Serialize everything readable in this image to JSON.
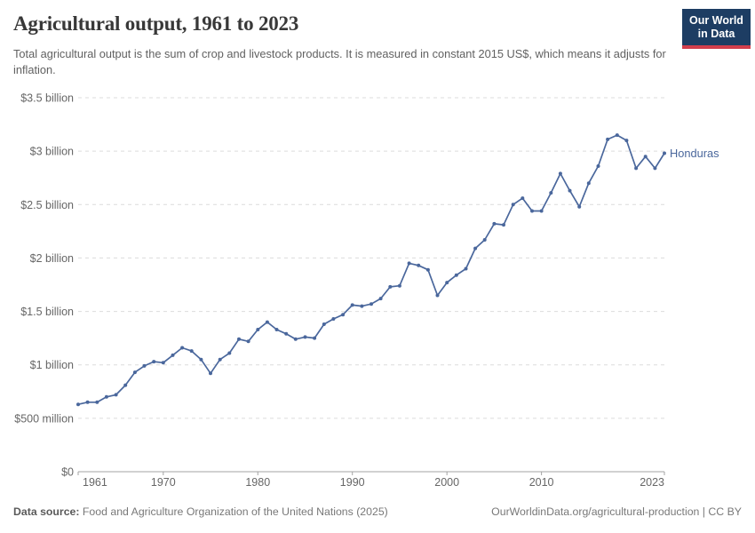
{
  "header": {
    "title": "Agricultural output, 1961 to 2023",
    "subtitle": "Total agricultural output is the sum of crop and livestock products. It is measured in constant 2015 US$, which means it adjusts for inflation.",
    "logo": {
      "line1": "Our World",
      "line2": "in Data",
      "bg_color": "#1d3d63",
      "accent_color": "#d23e4c"
    }
  },
  "chart_data": {
    "type": "line",
    "title": "Agricultural output, 1961 to 2023",
    "unit": "constant 2015 US$",
    "grid": true,
    "legend_position": "end-of-line",
    "xlim": [
      1961,
      2023
    ],
    "ylim": [
      0,
      3.5
    ],
    "x_ticks": [
      1961,
      1970,
      1980,
      1990,
      2000,
      2010,
      2023
    ],
    "y_ticks": [
      {
        "value": 0,
        "label": "$0"
      },
      {
        "value": 0.5,
        "label": "$500 million"
      },
      {
        "value": 1,
        "label": "$1 billion"
      },
      {
        "value": 1.5,
        "label": "$1.5 billion"
      },
      {
        "value": 2,
        "label": "$2 billion"
      },
      {
        "value": 2.5,
        "label": "$2.5 billion"
      },
      {
        "value": 3,
        "label": "$3 billion"
      },
      {
        "value": 3.5,
        "label": "$3.5 billion"
      }
    ],
    "series": [
      {
        "name": "Honduras",
        "color": "#4a679c",
        "x": [
          1961,
          1962,
          1963,
          1964,
          1965,
          1966,
          1967,
          1968,
          1969,
          1970,
          1971,
          1972,
          1973,
          1974,
          1975,
          1976,
          1977,
          1978,
          1979,
          1980,
          1981,
          1982,
          1983,
          1984,
          1985,
          1986,
          1987,
          1988,
          1989,
          1990,
          1991,
          1992,
          1993,
          1994,
          1995,
          1996,
          1997,
          1998,
          1999,
          2000,
          2001,
          2002,
          2003,
          2004,
          2005,
          2006,
          2007,
          2008,
          2009,
          2010,
          2011,
          2012,
          2013,
          2014,
          2015,
          2016,
          2017,
          2018,
          2019,
          2020,
          2021,
          2022,
          2023
        ],
        "values": [
          0.63,
          0.65,
          0.65,
          0.7,
          0.72,
          0.81,
          0.93,
          0.99,
          1.03,
          1.02,
          1.09,
          1.16,
          1.13,
          1.05,
          0.92,
          1.05,
          1.11,
          1.24,
          1.22,
          1.33,
          1.4,
          1.33,
          1.29,
          1.24,
          1.26,
          1.25,
          1.38,
          1.43,
          1.47,
          1.56,
          1.55,
          1.57,
          1.62,
          1.73,
          1.74,
          1.95,
          1.93,
          1.89,
          1.65,
          1.77,
          1.84,
          1.9,
          2.09,
          2.17,
          2.32,
          2.31,
          2.5,
          2.56,
          2.44,
          2.44,
          2.61,
          2.79,
          2.63,
          2.48,
          2.7,
          2.86,
          3.11,
          3.15,
          3.1,
          2.84,
          2.95,
          2.84,
          2.98
        ]
      }
    ],
    "value_unit_scale": "billions of constant 2015 US$"
  },
  "footer": {
    "source_label": "Data source:",
    "source_text": "Food and Agriculture Organization of the United Nations (2025)",
    "link_text": "OurWorldinData.org/agricultural-production | CC BY"
  },
  "colors": {
    "line": "#4a679c",
    "gridline": "#dcdcdc",
    "axis": "#a3a3a3",
    "tick_label": "#666666",
    "title": "#383838",
    "subtitle": "#616161",
    "logo_bg": "#1d3d63",
    "logo_accent": "#d23e4c"
  }
}
